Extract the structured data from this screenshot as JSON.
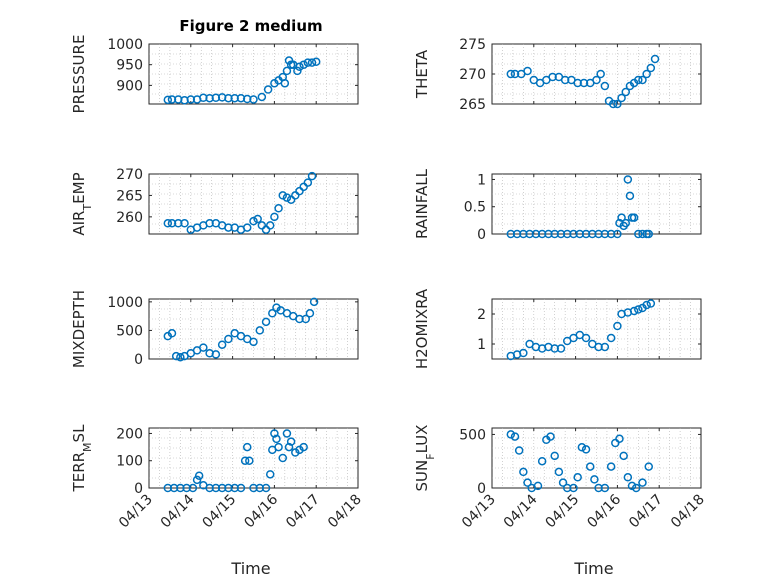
{
  "figure": {
    "title": "Figure 2 medium",
    "xlabel": "Time",
    "x_tick_labels": [
      "04/13",
      "04/14",
      "04/15",
      "04/16",
      "04/17",
      "04/18"
    ],
    "marker_color": "#0072BD",
    "axis_color": "#262626",
    "grid_color": "#b3b3b3"
  },
  "chart_data": [
    {
      "type": "scatter",
      "ylabel": "PRESSURE",
      "title": "Figure 2 medium",
      "xlim": [
        0,
        5
      ],
      "ylim": [
        855,
        1000
      ],
      "yticks": [
        900,
        950,
        1000
      ],
      "grid": true,
      "xy": [
        [
          0.45,
          865
        ],
        [
          0.55,
          866
        ],
        [
          0.7,
          866
        ],
        [
          0.85,
          864
        ],
        [
          1.0,
          866
        ],
        [
          1.15,
          866
        ],
        [
          1.3,
          870
        ],
        [
          1.45,
          869
        ],
        [
          1.6,
          870
        ],
        [
          1.75,
          871
        ],
        [
          1.9,
          869
        ],
        [
          2.05,
          869
        ],
        [
          2.2,
          869
        ],
        [
          2.35,
          867
        ],
        [
          2.5,
          866
        ],
        [
          2.7,
          872
        ],
        [
          2.85,
          890
        ],
        [
          3.0,
          905
        ],
        [
          3.1,
          912
        ],
        [
          3.2,
          920
        ],
        [
          3.25,
          905
        ],
        [
          3.3,
          935
        ],
        [
          3.35,
          960
        ],
        [
          3.4,
          950
        ],
        [
          3.45,
          950
        ],
        [
          3.55,
          935
        ],
        [
          3.6,
          945
        ],
        [
          3.7,
          950
        ],
        [
          3.8,
          955
        ],
        [
          3.9,
          955
        ],
        [
          4.0,
          957
        ]
      ]
    },
    {
      "type": "scatter",
      "ylabel": "THETA",
      "xlim": [
        0,
        5
      ],
      "ylim": [
        265,
        275
      ],
      "yticks": [
        265,
        270,
        275
      ],
      "grid": true,
      "xy": [
        [
          0.45,
          270
        ],
        [
          0.55,
          270
        ],
        [
          0.7,
          270
        ],
        [
          0.85,
          270.5
        ],
        [
          1.0,
          269
        ],
        [
          1.15,
          268.5
        ],
        [
          1.3,
          269
        ],
        [
          1.45,
          269.5
        ],
        [
          1.6,
          269.5
        ],
        [
          1.75,
          269
        ],
        [
          1.9,
          269
        ],
        [
          2.05,
          268.5
        ],
        [
          2.2,
          268.5
        ],
        [
          2.35,
          268.5
        ],
        [
          2.5,
          269
        ],
        [
          2.6,
          270
        ],
        [
          2.7,
          268
        ],
        [
          2.8,
          265.5
        ],
        [
          2.9,
          265
        ],
        [
          3.0,
          265
        ],
        [
          3.1,
          266
        ],
        [
          3.2,
          267
        ],
        [
          3.3,
          268
        ],
        [
          3.4,
          268.5
        ],
        [
          3.5,
          269
        ],
        [
          3.6,
          269
        ],
        [
          3.7,
          270
        ],
        [
          3.8,
          271
        ],
        [
          3.9,
          272.5
        ]
      ]
    },
    {
      "type": "scatter",
      "ylabel": "AIR_TEMP",
      "xlim": [
        0,
        5
      ],
      "ylim": [
        256,
        270
      ],
      "yticks": [
        260,
        265,
        270
      ],
      "grid": true,
      "xy": [
        [
          0.45,
          258.5
        ],
        [
          0.55,
          258.5
        ],
        [
          0.7,
          258.5
        ],
        [
          0.85,
          258.5
        ],
        [
          1.0,
          257
        ],
        [
          1.15,
          257.5
        ],
        [
          1.3,
          258
        ],
        [
          1.45,
          258.5
        ],
        [
          1.6,
          258.5
        ],
        [
          1.75,
          258
        ],
        [
          1.9,
          257.5
        ],
        [
          2.05,
          257.5
        ],
        [
          2.2,
          257
        ],
        [
          2.35,
          257.5
        ],
        [
          2.5,
          259
        ],
        [
          2.6,
          259.5
        ],
        [
          2.7,
          258
        ],
        [
          2.8,
          257
        ],
        [
          2.9,
          258
        ],
        [
          3.0,
          260
        ],
        [
          3.1,
          262
        ],
        [
          3.2,
          265
        ],
        [
          3.3,
          264.5
        ],
        [
          3.4,
          264
        ],
        [
          3.5,
          265
        ],
        [
          3.6,
          266
        ],
        [
          3.7,
          267
        ],
        [
          3.8,
          268
        ],
        [
          3.9,
          269.5
        ]
      ]
    },
    {
      "type": "scatter",
      "ylabel": "RAINFALL",
      "xlim": [
        0,
        5
      ],
      "ylim": [
        0,
        1.1
      ],
      "yticks": [
        0,
        0.5,
        1
      ],
      "grid": true,
      "xy": [
        [
          0.45,
          0
        ],
        [
          0.6,
          0
        ],
        [
          0.75,
          0
        ],
        [
          0.9,
          0
        ],
        [
          1.05,
          0
        ],
        [
          1.2,
          0
        ],
        [
          1.35,
          0
        ],
        [
          1.5,
          0
        ],
        [
          1.65,
          0
        ],
        [
          1.8,
          0
        ],
        [
          1.95,
          0
        ],
        [
          2.1,
          0
        ],
        [
          2.25,
          0
        ],
        [
          2.4,
          0
        ],
        [
          2.55,
          0
        ],
        [
          2.7,
          0
        ],
        [
          2.85,
          0
        ],
        [
          3.0,
          0
        ],
        [
          3.05,
          0.2
        ],
        [
          3.1,
          0.3
        ],
        [
          3.15,
          0.15
        ],
        [
          3.2,
          0.2
        ],
        [
          3.25,
          1.0
        ],
        [
          3.3,
          0.7
        ],
        [
          3.35,
          0.3
        ],
        [
          3.4,
          0.3
        ],
        [
          3.5,
          0
        ],
        [
          3.6,
          0
        ],
        [
          3.7,
          0
        ],
        [
          3.75,
          0
        ]
      ]
    },
    {
      "type": "scatter",
      "ylabel": "MIXDEPTH",
      "xlim": [
        0,
        5
      ],
      "ylim": [
        0,
        1050
      ],
      "yticks": [
        0,
        500,
        1000
      ],
      "grid": true,
      "xy": [
        [
          0.45,
          400
        ],
        [
          0.55,
          450
        ],
        [
          0.65,
          50
        ],
        [
          0.75,
          30
        ],
        [
          0.85,
          50
        ],
        [
          1.0,
          100
        ],
        [
          1.15,
          150
        ],
        [
          1.3,
          200
        ],
        [
          1.45,
          100
        ],
        [
          1.6,
          80
        ],
        [
          1.75,
          250
        ],
        [
          1.9,
          350
        ],
        [
          2.05,
          450
        ],
        [
          2.2,
          400
        ],
        [
          2.35,
          350
        ],
        [
          2.5,
          300
        ],
        [
          2.65,
          500
        ],
        [
          2.8,
          650
        ],
        [
          2.95,
          800
        ],
        [
          3.05,
          900
        ],
        [
          3.15,
          850
        ],
        [
          3.3,
          800
        ],
        [
          3.45,
          750
        ],
        [
          3.6,
          700
        ],
        [
          3.75,
          700
        ],
        [
          3.85,
          800
        ],
        [
          3.95,
          1000
        ]
      ]
    },
    {
      "type": "scatter",
      "ylabel": "H2OMIXRA",
      "xlim": [
        0,
        5
      ],
      "ylim": [
        0.5,
        2.5
      ],
      "yticks": [
        1,
        2
      ],
      "grid": true,
      "xy": [
        [
          0.45,
          0.6
        ],
        [
          0.6,
          0.65
        ],
        [
          0.75,
          0.7
        ],
        [
          0.9,
          1.0
        ],
        [
          1.05,
          0.9
        ],
        [
          1.2,
          0.85
        ],
        [
          1.35,
          0.9
        ],
        [
          1.5,
          0.85
        ],
        [
          1.65,
          0.85
        ],
        [
          1.8,
          1.1
        ],
        [
          1.95,
          1.2
        ],
        [
          2.1,
          1.3
        ],
        [
          2.25,
          1.2
        ],
        [
          2.4,
          1.0
        ],
        [
          2.55,
          0.9
        ],
        [
          2.7,
          0.9
        ],
        [
          2.85,
          1.2
        ],
        [
          3.0,
          1.6
        ],
        [
          3.1,
          2.0
        ],
        [
          3.25,
          2.05
        ],
        [
          3.4,
          2.1
        ],
        [
          3.5,
          2.15
        ],
        [
          3.6,
          2.2
        ],
        [
          3.7,
          2.3
        ],
        [
          3.8,
          2.35
        ]
      ]
    },
    {
      "type": "scatter",
      "ylabel": "TERR_MSL",
      "xlim": [
        0,
        5
      ],
      "ylim": [
        0,
        220
      ],
      "yticks": [
        0,
        100,
        200
      ],
      "grid": true,
      "xy": [
        [
          0.45,
          0
        ],
        [
          0.6,
          0
        ],
        [
          0.75,
          0
        ],
        [
          0.9,
          0
        ],
        [
          1.05,
          0
        ],
        [
          1.15,
          30
        ],
        [
          1.2,
          45
        ],
        [
          1.3,
          10
        ],
        [
          1.45,
          0
        ],
        [
          1.6,
          0
        ],
        [
          1.75,
          0
        ],
        [
          1.9,
          0
        ],
        [
          2.05,
          0
        ],
        [
          2.2,
          0
        ],
        [
          2.3,
          100
        ],
        [
          2.35,
          150
        ],
        [
          2.4,
          100
        ],
        [
          2.5,
          0
        ],
        [
          2.65,
          0
        ],
        [
          2.8,
          0
        ],
        [
          2.9,
          50
        ],
        [
          2.95,
          140
        ],
        [
          3.0,
          200
        ],
        [
          3.05,
          180
        ],
        [
          3.1,
          150
        ],
        [
          3.2,
          110
        ],
        [
          3.3,
          200
        ],
        [
          3.35,
          150
        ],
        [
          3.4,
          170
        ],
        [
          3.5,
          130
        ],
        [
          3.6,
          140
        ],
        [
          3.7,
          150
        ]
      ]
    },
    {
      "type": "scatter",
      "ylabel": "SUN_FLUX",
      "xlim": [
        0,
        5
      ],
      "ylim": [
        0,
        560
      ],
      "yticks": [
        0,
        500
      ],
      "grid": true,
      "xy": [
        [
          0.45,
          500
        ],
        [
          0.55,
          480
        ],
        [
          0.65,
          350
        ],
        [
          0.75,
          150
        ],
        [
          0.85,
          50
        ],
        [
          0.95,
          0
        ],
        [
          1.1,
          20
        ],
        [
          1.2,
          250
        ],
        [
          1.3,
          450
        ],
        [
          1.4,
          480
        ],
        [
          1.5,
          300
        ],
        [
          1.6,
          150
        ],
        [
          1.7,
          50
        ],
        [
          1.8,
          0
        ],
        [
          1.95,
          0
        ],
        [
          2.05,
          100
        ],
        [
          2.15,
          380
        ],
        [
          2.25,
          360
        ],
        [
          2.35,
          200
        ],
        [
          2.45,
          80
        ],
        [
          2.55,
          0
        ],
        [
          2.7,
          0
        ],
        [
          2.85,
          200
        ],
        [
          2.95,
          420
        ],
        [
          3.05,
          460
        ],
        [
          3.15,
          300
        ],
        [
          3.25,
          100
        ],
        [
          3.35,
          20
        ],
        [
          3.45,
          0
        ],
        [
          3.6,
          50
        ],
        [
          3.75,
          200
        ]
      ]
    }
  ]
}
